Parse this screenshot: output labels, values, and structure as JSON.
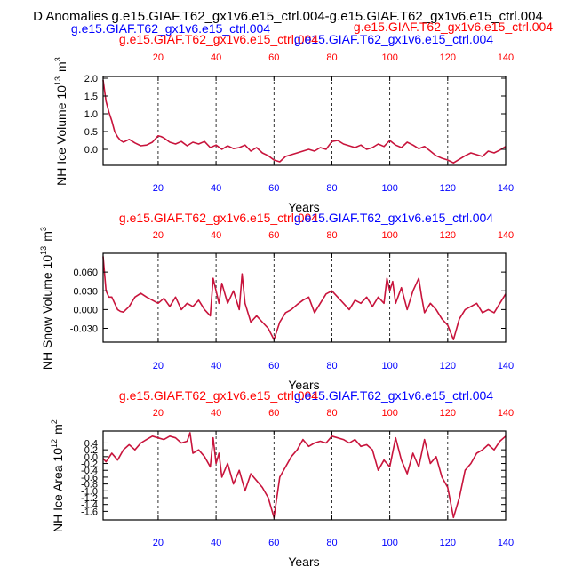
{
  "figure": {
    "title": "D Anomalies g.e15.GIAF.T62_gx1v6.e15_ctrl.004-g.e15.GIAF.T62_gx1v6.e15_ctrl.004",
    "colors": {
      "red": "#ff0000",
      "blue": "#0000ff",
      "black": "#000000",
      "line": "#c8143c"
    }
  },
  "chart_data": [
    {
      "type": "line",
      "ylabel": "NH Ice Volume 10^13 m^3",
      "xlabel": "",
      "top_labels": {
        "left": "g.e15.GIAF.T62_gx1v6.e15_ctrl.004",
        "right": "g.e15.GIAF.T62_gx1v6.e15_ctrl.004",
        "over": "g.e15.GIAF.T62_gx1v6.e15_ctrl.004"
      },
      "xlim": [
        1,
        140
      ],
      "ylim": [
        -0.45,
        2.05
      ],
      "yticks": [
        2.0,
        1.5,
        1.0,
        0.5,
        0.0
      ],
      "ytick_labels": [
        "2.0",
        "1.5",
        "1.0",
        "0.5",
        "0.0"
      ],
      "xticks": [
        20,
        40,
        60,
        80,
        100,
        120,
        140
      ],
      "xtick_labels": [
        "20",
        "40",
        "60",
        "80",
        "100",
        "120",
        "140"
      ],
      "vlines": [
        20,
        40,
        60,
        80,
        100,
        120
      ],
      "series": [
        {
          "x": [
            1,
            2,
            3,
            4,
            5,
            6,
            7,
            8,
            10,
            12,
            14,
            16,
            18,
            20,
            21,
            22,
            24,
            26,
            28,
            30,
            32,
            34,
            36,
            38,
            40,
            42,
            44,
            46,
            48,
            50,
            52,
            54,
            56,
            58,
            60,
            62,
            64,
            66,
            68,
            70,
            72,
            74,
            76,
            78,
            80,
            82,
            84,
            86,
            88,
            90,
            92,
            94,
            96,
            98,
            100,
            102,
            104,
            106,
            108,
            110,
            112,
            114,
            116,
            118,
            120,
            122,
            124,
            126,
            128,
            130,
            132,
            134,
            136,
            138,
            140
          ],
          "y": [
            1.95,
            1.35,
            1.05,
            0.8,
            0.5,
            0.35,
            0.25,
            0.2,
            0.28,
            0.18,
            0.1,
            0.12,
            0.2,
            0.38,
            0.36,
            0.32,
            0.2,
            0.15,
            0.22,
            0.1,
            0.2,
            0.15,
            0.22,
            0.05,
            0.12,
            0.0,
            0.1,
            0.02,
            0.05,
            0.12,
            -0.05,
            0.05,
            -0.1,
            -0.18,
            -0.3,
            -0.35,
            -0.2,
            -0.15,
            -0.1,
            -0.05,
            0.0,
            -0.05,
            0.05,
            0.0,
            0.22,
            0.25,
            0.15,
            0.1,
            0.05,
            0.12,
            0.0,
            0.05,
            0.15,
            0.08,
            0.25,
            0.12,
            0.05,
            0.2,
            0.12,
            0.02,
            0.08,
            -0.05,
            -0.18,
            -0.25,
            -0.3,
            -0.38,
            -0.28,
            -0.18,
            -0.1,
            -0.15,
            -0.2,
            -0.05,
            -0.1,
            -0.02,
            0.08
          ]
        }
      ]
    },
    {
      "type": "line",
      "ylabel": "NH Snow Volume 10^13 m^3",
      "xlabel": "Years",
      "top_labels": {
        "left": "g.e15.GIAF.T62_gx1v6.e15_ctrl.004",
        "right": "g.e15.GIAF.T62_gx1v6.e15_ctrl.004"
      },
      "xlim": [
        1,
        140
      ],
      "ylim": [
        -0.052,
        0.09
      ],
      "yticks": [
        0.06,
        0.03,
        0.0,
        -0.03
      ],
      "ytick_labels": [
        "0.060",
        "0.030",
        "0.000",
        "-0.030"
      ],
      "xticks": [
        20,
        40,
        60,
        80,
        100,
        120,
        140
      ],
      "xtick_labels": [
        "20",
        "40",
        "60",
        "80",
        "100",
        "120",
        "140"
      ],
      "vlines": [
        20,
        40,
        60,
        80,
        100,
        120
      ],
      "series": [
        {
          "x": [
            1,
            2,
            3,
            4,
            5,
            6,
            7,
            8,
            10,
            12,
            14,
            16,
            18,
            20,
            22,
            24,
            26,
            28,
            30,
            32,
            34,
            36,
            38,
            39,
            40,
            41,
            42,
            44,
            46,
            48,
            49,
            50,
            52,
            54,
            56,
            58,
            60,
            62,
            64,
            66,
            68,
            70,
            72,
            74,
            76,
            78,
            80,
            82,
            84,
            86,
            88,
            90,
            92,
            94,
            96,
            98,
            99,
            100,
            101,
            102,
            104,
            106,
            108,
            110,
            111,
            112,
            114,
            116,
            118,
            120,
            122,
            124,
            126,
            128,
            130,
            132,
            134,
            136,
            138,
            140
          ],
          "y": [
            0.085,
            0.03,
            0.02,
            0.02,
            0.01,
            0.0,
            -0.003,
            -0.004,
            0.005,
            0.02,
            0.026,
            0.02,
            0.015,
            0.01,
            0.018,
            0.005,
            0.02,
            0.0,
            0.01,
            0.005,
            0.015,
            0.0,
            -0.01,
            0.05,
            0.03,
            0.01,
            0.042,
            0.01,
            0.03,
            0.0,
            0.057,
            0.01,
            -0.02,
            -0.01,
            -0.02,
            -0.03,
            -0.048,
            -0.02,
            -0.005,
            0.0,
            0.008,
            0.015,
            0.02,
            -0.005,
            0.01,
            0.025,
            0.03,
            0.02,
            0.01,
            0.0,
            0.015,
            0.01,
            0.02,
            0.005,
            0.02,
            0.01,
            0.05,
            0.03,
            0.045,
            0.01,
            0.035,
            0.0,
            0.03,
            0.05,
            0.02,
            -0.005,
            0.01,
            0.0,
            -0.015,
            -0.025,
            -0.048,
            -0.015,
            0.0,
            0.005,
            0.01,
            -0.005,
            0.0,
            -0.005,
            0.01,
            0.025
          ]
        }
      ]
    },
    {
      "type": "line",
      "ylabel": "NH Ice Area 10^12 m^2",
      "xlabel": "Years",
      "top_labels": {
        "left": "g.e15.GIAF.T62_gx1v6.e15_ctrl.004",
        "right": "g.e15.GIAF.T62_gx1v6.e15_ctrl.004"
      },
      "xlim": [
        1,
        140
      ],
      "ylim": [
        -1.85,
        0.75
      ],
      "yticks": [
        0.4,
        0.2,
        0.0,
        -0.2,
        -0.4,
        -0.6,
        -0.8,
        -1.0,
        -1.2,
        -1.4,
        -1.6
      ],
      "ytick_labels": [
        "0.4",
        "0.2",
        "0.0",
        "-0.2",
        "-0.4",
        "-0.6",
        "-0.8",
        "-1.0",
        "-1.2",
        "-1.4",
        "-1.6"
      ],
      "xticks": [
        20,
        40,
        60,
        80,
        100,
        120,
        140
      ],
      "xtick_labels": [
        "20",
        "40",
        "60",
        "80",
        "100",
        "120",
        "140"
      ],
      "vlines": [
        20,
        40,
        60,
        80,
        100,
        120
      ],
      "series": [
        {
          "x": [
            1,
            2,
            4,
            6,
            8,
            10,
            12,
            14,
            16,
            18,
            20,
            22,
            24,
            26,
            28,
            30,
            31,
            32,
            34,
            36,
            38,
            39,
            40,
            41,
            42,
            44,
            46,
            48,
            50,
            52,
            54,
            56,
            58,
            60,
            62,
            64,
            66,
            68,
            70,
            72,
            74,
            76,
            78,
            80,
            82,
            84,
            86,
            88,
            90,
            92,
            94,
            96,
            98,
            100,
            102,
            104,
            106,
            108,
            110,
            112,
            114,
            116,
            118,
            120,
            122,
            124,
            126,
            128,
            130,
            132,
            134,
            136,
            138,
            140
          ],
          "y": [
            -0.05,
            -0.15,
            0.1,
            -0.1,
            0.2,
            0.35,
            0.2,
            0.4,
            0.5,
            0.6,
            0.55,
            0.5,
            0.6,
            0.55,
            0.4,
            0.45,
            0.7,
            0.1,
            0.2,
            0.0,
            -0.3,
            0.55,
            -0.2,
            0.1,
            -0.6,
            -0.2,
            -0.8,
            -0.4,
            -1.0,
            -0.5,
            -0.7,
            -0.9,
            -1.2,
            -1.78,
            -0.6,
            -0.3,
            0.0,
            0.2,
            0.5,
            0.3,
            0.4,
            0.45,
            0.4,
            0.6,
            0.55,
            0.5,
            0.4,
            0.5,
            0.3,
            0.35,
            0.2,
            -0.4,
            -0.1,
            -0.3,
            0.55,
            -0.1,
            -0.5,
            0.1,
            -0.3,
            0.5,
            -0.2,
            0.0,
            -0.6,
            -0.9,
            -1.78,
            -1.2,
            -0.4,
            -0.2,
            0.1,
            0.2,
            0.35,
            0.2,
            0.45,
            0.6
          ]
        }
      ]
    }
  ]
}
